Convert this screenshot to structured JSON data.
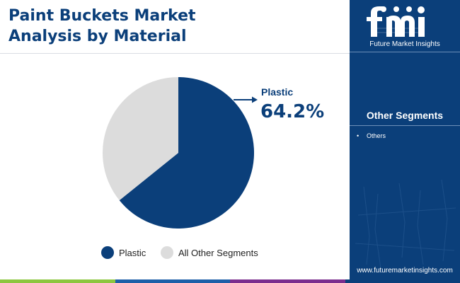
{
  "title": "Paint Buckets Market\nAnalysis by Material",
  "brand": {
    "logo_text": "fmi",
    "name": "Future Market Insights",
    "website": "www.futuremarketinsights.com"
  },
  "sidebar": {
    "heading": "Other Segments",
    "items": [
      "Others"
    ]
  },
  "callout": {
    "label": "Plastic",
    "value": "64.2%"
  },
  "colors": {
    "navy": "#0b3f7a",
    "light_gray": "#dcdcdc",
    "bar_green": "#8cc63f",
    "bar_blue": "#1d5fa8",
    "bar_purple": "#7b2d8e"
  },
  "chart_data": {
    "type": "pie",
    "categories": [
      "Plastic",
      "All Other Segments"
    ],
    "values": [
      64.2,
      35.8
    ],
    "colors": [
      "#0b3f7a",
      "#dcdcdc"
    ],
    "start_angle": "12 o'clock, clockwise",
    "legend_position": "bottom"
  }
}
